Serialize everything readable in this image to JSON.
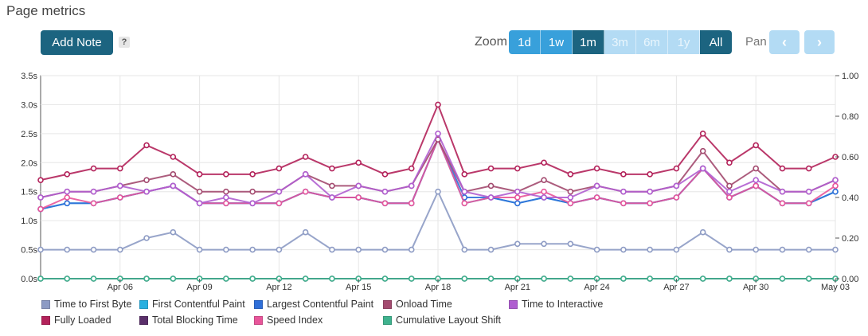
{
  "header": {
    "title": "Page metrics"
  },
  "toolbar": {
    "add_note_label": "Add Note",
    "help_label": "?",
    "zoom_label": "Zoom",
    "zoom_options": [
      "1d",
      "1w",
      "1m",
      "3m",
      "6m",
      "1y",
      "All"
    ],
    "zoom_selected": "All",
    "pan_label": "Pan",
    "pan_prev": "‹",
    "pan_next": "›"
  },
  "colors": {
    "ttfb": "#8d9bc4",
    "fcp": "#2ab0e0",
    "lcp": "#2f6fd8",
    "onload": "#a34a6f",
    "tti": "#b05ed0",
    "fully": "#b3225a",
    "tbt": "#5a2f6a",
    "si": "#e8559a",
    "cls": "#3fb28e"
  },
  "chart_data": {
    "type": "line",
    "x": [
      "Apr 03",
      "Apr 04",
      "Apr 05",
      "Apr 06",
      "Apr 07",
      "Apr 08",
      "Apr 09",
      "Apr 10",
      "Apr 11",
      "Apr 12",
      "Apr 13",
      "Apr 14",
      "Apr 15",
      "Apr 16",
      "Apr 17",
      "Apr 18",
      "Apr 19",
      "Apr 20",
      "Apr 21",
      "Apr 22",
      "Apr 23",
      "Apr 24",
      "Apr 25",
      "Apr 26",
      "Apr 27",
      "Apr 28",
      "Apr 29",
      "Apr 30",
      "May 01",
      "May 02",
      "May 03"
    ],
    "x_tick_labels": [
      "Apr 06",
      "Apr 09",
      "Apr 12",
      "Apr 15",
      "Apr 18",
      "Apr 21",
      "Apr 24",
      "Apr 27",
      "Apr 30",
      "May 03"
    ],
    "y_left": {
      "ticks": [
        "0.0s",
        "0.5s",
        "1.0s",
        "1.5s",
        "2.0s",
        "2.5s",
        "3.0s",
        "3.5s"
      ],
      "ylim": [
        0,
        3.5
      ],
      "unit": "s"
    },
    "y_right": {
      "ticks": [
        "0.00",
        "0.20",
        "0.40",
        "0.60",
        "0.80",
        "1.00"
      ],
      "ylim": [
        0,
        1
      ]
    },
    "grid": true,
    "legend_position": "bottom",
    "series": [
      {
        "key": "ttfb",
        "name": "Time to First Byte",
        "axis": "left",
        "values": [
          0.5,
          0.5,
          0.5,
          0.5,
          0.7,
          0.8,
          0.5,
          0.5,
          0.5,
          0.5,
          0.8,
          0.5,
          0.5,
          0.5,
          0.5,
          1.5,
          0.5,
          0.5,
          0.6,
          0.6,
          0.6,
          0.5,
          0.5,
          0.5,
          0.5,
          0.8,
          0.5,
          0.5,
          0.5,
          0.5,
          0.5
        ]
      },
      {
        "key": "fcp",
        "name": "First Contentful Paint",
        "axis": "left",
        "values": [
          1.2,
          1.3,
          1.3,
          1.4,
          1.5,
          1.6,
          1.3,
          1.3,
          1.3,
          1.3,
          1.5,
          1.4,
          1.4,
          1.3,
          1.3,
          2.4,
          1.3,
          1.4,
          1.3,
          1.4,
          1.3,
          1.4,
          1.3,
          1.3,
          1.4,
          1.9,
          1.4,
          1.6,
          1.3,
          1.3,
          1.5
        ]
      },
      {
        "key": "lcp",
        "name": "Largest Contentful Paint",
        "axis": "left",
        "values": [
          1.2,
          1.3,
          1.3,
          1.4,
          1.5,
          1.6,
          1.3,
          1.3,
          1.3,
          1.3,
          1.5,
          1.4,
          1.4,
          1.3,
          1.3,
          2.4,
          1.4,
          1.4,
          1.3,
          1.4,
          1.3,
          1.4,
          1.3,
          1.3,
          1.4,
          1.9,
          1.4,
          1.6,
          1.3,
          1.3,
          1.5
        ]
      },
      {
        "key": "onload",
        "name": "Onload Time",
        "axis": "left",
        "values": [
          1.4,
          1.5,
          1.5,
          1.6,
          1.7,
          1.8,
          1.5,
          1.5,
          1.5,
          1.5,
          1.8,
          1.6,
          1.6,
          1.5,
          1.6,
          2.4,
          1.5,
          1.6,
          1.5,
          1.7,
          1.5,
          1.6,
          1.5,
          1.5,
          1.6,
          2.2,
          1.6,
          1.9,
          1.5,
          1.5,
          1.7
        ]
      },
      {
        "key": "tti",
        "name": "Time to Interactive",
        "axis": "left",
        "values": [
          1.4,
          1.5,
          1.5,
          1.6,
          1.5,
          1.6,
          1.3,
          1.4,
          1.3,
          1.5,
          1.8,
          1.4,
          1.6,
          1.5,
          1.6,
          2.5,
          1.5,
          1.4,
          1.5,
          1.4,
          1.4,
          1.6,
          1.5,
          1.5,
          1.6,
          1.9,
          1.5,
          1.7,
          1.5,
          1.5,
          1.7
        ]
      },
      {
        "key": "fully",
        "name": "Fully Loaded",
        "axis": "left",
        "values": [
          1.7,
          1.8,
          1.9,
          1.9,
          2.3,
          2.1,
          1.8,
          1.8,
          1.8,
          1.9,
          2.1,
          1.9,
          2.0,
          1.8,
          1.9,
          3.0,
          1.8,
          1.9,
          1.9,
          2.0,
          1.8,
          1.9,
          1.8,
          1.8,
          1.9,
          2.5,
          2.0,
          2.3,
          1.9,
          1.9,
          2.1
        ]
      },
      {
        "key": "tbt",
        "name": "Total Blocking Time",
        "axis": "left",
        "values": [
          0,
          0,
          0,
          0,
          0,
          0,
          0,
          0,
          0,
          0,
          0,
          0,
          0,
          0,
          0,
          0,
          0,
          0,
          0,
          0,
          0,
          0,
          0,
          0,
          0,
          0,
          0,
          0,
          0,
          0,
          0
        ]
      },
      {
        "key": "si",
        "name": "Speed Index",
        "axis": "left",
        "values": [
          1.2,
          1.4,
          1.3,
          1.4,
          1.5,
          1.6,
          1.3,
          1.3,
          1.3,
          1.3,
          1.5,
          1.4,
          1.4,
          1.3,
          1.3,
          2.4,
          1.3,
          1.4,
          1.4,
          1.5,
          1.3,
          1.4,
          1.3,
          1.3,
          1.4,
          1.9,
          1.4,
          1.6,
          1.3,
          1.3,
          1.6
        ]
      },
      {
        "key": "cls",
        "name": "Cumulative Layout Shift",
        "axis": "right",
        "values": [
          0,
          0,
          0,
          0,
          0,
          0,
          0,
          0,
          0,
          0,
          0,
          0,
          0,
          0,
          0,
          0,
          0,
          0,
          0,
          0,
          0,
          0,
          0,
          0,
          0,
          0,
          0,
          0,
          0,
          0,
          0
        ]
      }
    ]
  }
}
